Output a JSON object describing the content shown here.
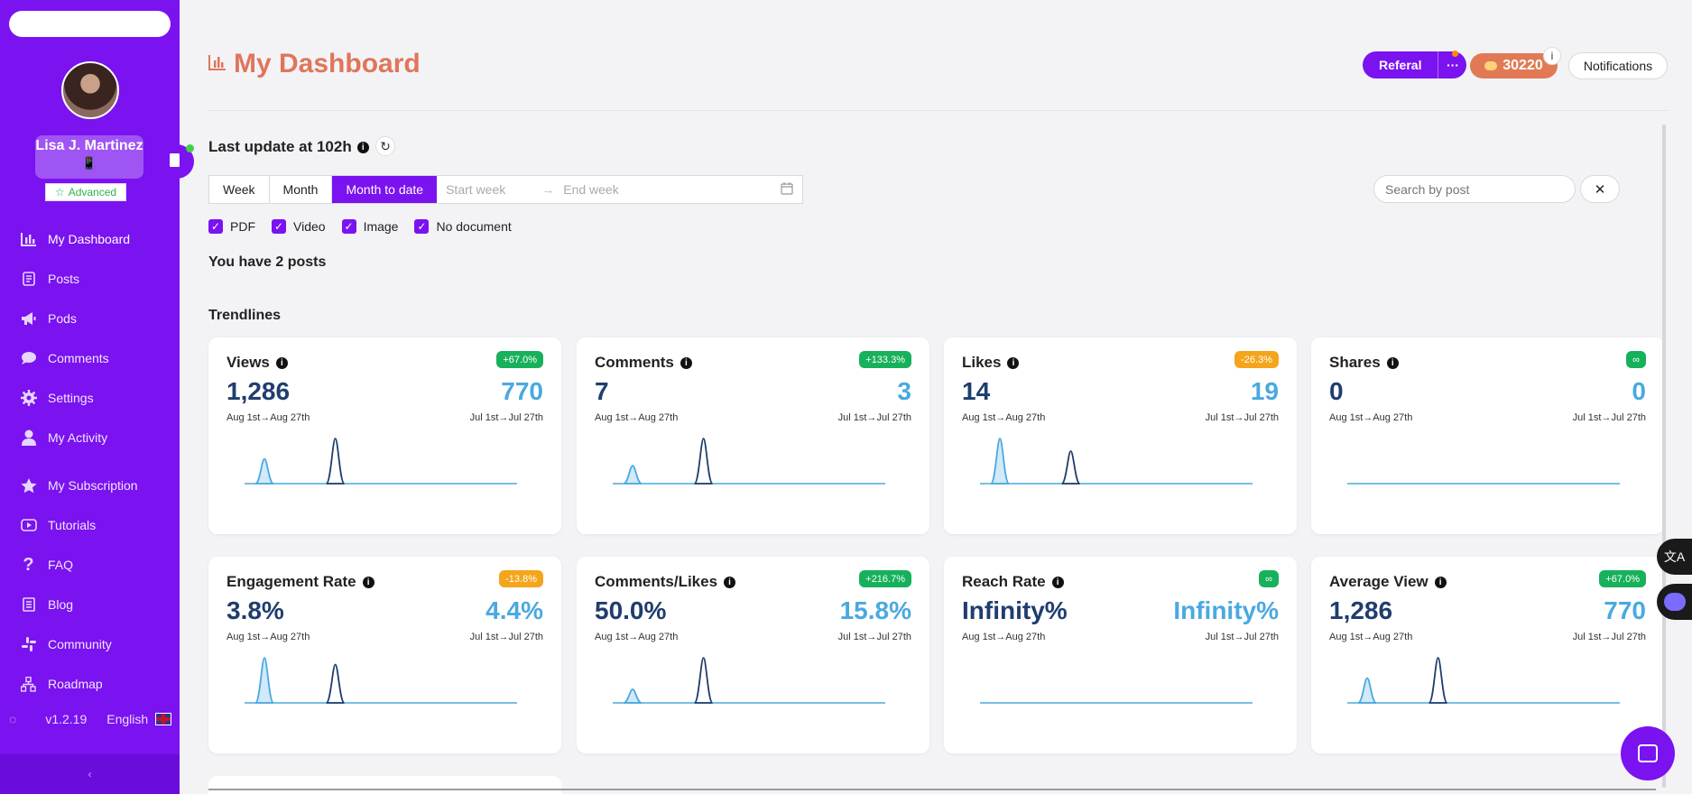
{
  "sidebar": {
    "user_name": "Lisa J. Martinez",
    "phone_glyph": "📱",
    "badge": "Advanced",
    "nav": [
      {
        "label": "My Dashboard",
        "icon": "bar-chart-icon"
      },
      {
        "label": "Posts",
        "icon": "document-icon"
      },
      {
        "label": "Pods",
        "icon": "megaphone-icon"
      },
      {
        "label": "Comments",
        "icon": "speech-bubble-icon"
      },
      {
        "label": "Settings",
        "icon": "gear-icon"
      },
      {
        "label": "My Activity",
        "icon": "user-icon"
      },
      {
        "label": "My Subscription",
        "icon": "star-icon"
      },
      {
        "label": "Tutorials",
        "icon": "play-icon"
      },
      {
        "label": "FAQ",
        "icon": "question-icon"
      },
      {
        "label": "Blog",
        "icon": "blog-icon"
      },
      {
        "label": "Community",
        "icon": "slack-icon"
      },
      {
        "label": "Roadmap",
        "icon": "roadmap-icon"
      }
    ],
    "version": "v1.2.19",
    "language": "English",
    "collapse_glyph": "‹"
  },
  "header": {
    "title": "My Dashboard",
    "referral": "Referal",
    "more": "···",
    "coins": "30220",
    "info": "i",
    "notifications": "Notifications"
  },
  "toolbar": {
    "last_update": "Last update at 102h",
    "periods": [
      "Week",
      "Month",
      "Month to date"
    ],
    "start_placeholder": "Start week",
    "end_placeholder": "End week",
    "arrow": "→",
    "search_placeholder": "Search by post",
    "clear": "✕",
    "filters": [
      "PDF",
      "Video",
      "Image",
      "No document"
    ],
    "posts_count": "You have 2 posts",
    "section": "Trendlines"
  },
  "colors": {
    "accent": "#7b12f0",
    "positive": "#17b15b",
    "negative": "#f4a51c",
    "current": "#1f3d6e",
    "previous": "#4aa9e0"
  },
  "cards": [
    {
      "title": "Views",
      "pct": "+67.0%",
      "pct_type": "positive",
      "current": "1,286",
      "previous": "770",
      "cur_range": "Aug 1st→Aug 27th",
      "prev_range": "Jul 1st→Jul 27th",
      "spikes": [
        {
          "series": "prev",
          "x": 0.04,
          "h": 0.55
        },
        {
          "series": "cur",
          "x": 0.3,
          "h": 1.0
        }
      ]
    },
    {
      "title": "Comments",
      "pct": "+133.3%",
      "pct_type": "positive",
      "current": "7",
      "previous": "3",
      "cur_range": "Aug 1st→Aug 27th",
      "prev_range": "Jul 1st→Jul 27th",
      "spikes": [
        {
          "series": "prev",
          "x": 0.04,
          "h": 0.4
        },
        {
          "series": "cur",
          "x": 0.3,
          "h": 1.0
        }
      ]
    },
    {
      "title": "Likes",
      "pct": "-26.3%",
      "pct_type": "negative",
      "current": "14",
      "previous": "19",
      "cur_range": "Aug 1st→Aug 27th",
      "prev_range": "Jul 1st→Jul 27th",
      "spikes": [
        {
          "series": "prev",
          "x": 0.04,
          "h": 1.0
        },
        {
          "series": "cur",
          "x": 0.3,
          "h": 0.72
        }
      ]
    },
    {
      "title": "Shares",
      "pct": "∞",
      "pct_type": "positive",
      "current": "0",
      "previous": "0",
      "cur_range": "Aug 1st→Aug 27th",
      "prev_range": "Jul 1st→Jul 27th",
      "spikes": []
    },
    {
      "title": "Engagement Rate",
      "pct": "-13.8%",
      "pct_type": "negative",
      "current": "3.8%",
      "previous": "4.4%",
      "cur_range": "Aug 1st→Aug 27th",
      "prev_range": "Jul 1st→Jul 27th",
      "spikes": [
        {
          "series": "prev",
          "x": 0.04,
          "h": 1.0
        },
        {
          "series": "cur",
          "x": 0.3,
          "h": 0.85
        }
      ]
    },
    {
      "title": "Comments/Likes",
      "pct": "+216.7%",
      "pct_type": "positive",
      "current": "50.0%",
      "previous": "15.8%",
      "cur_range": "Aug 1st→Aug 27th",
      "prev_range": "Jul 1st→Jul 27th",
      "spikes": [
        {
          "series": "prev",
          "x": 0.04,
          "h": 0.3
        },
        {
          "series": "cur",
          "x": 0.3,
          "h": 1.0
        }
      ]
    },
    {
      "title": "Reach Rate",
      "pct": "∞",
      "pct_type": "positive",
      "current": "Infinity%",
      "previous": "Infinity%",
      "cur_range": "Aug 1st→Aug 27th",
      "prev_range": "Jul 1st→Jul 27th",
      "spikes": []
    },
    {
      "title": "Average View",
      "pct": "+67.0%",
      "pct_type": "positive",
      "current": "1,286",
      "previous": "770",
      "cur_range": "Aug 1st→Aug 27th",
      "prev_range": "Jul 1st→Jul 27th",
      "spikes": [
        {
          "series": "prev",
          "x": 0.04,
          "h": 0.55
        },
        {
          "series": "cur",
          "x": 0.3,
          "h": 1.0
        }
      ]
    }
  ]
}
